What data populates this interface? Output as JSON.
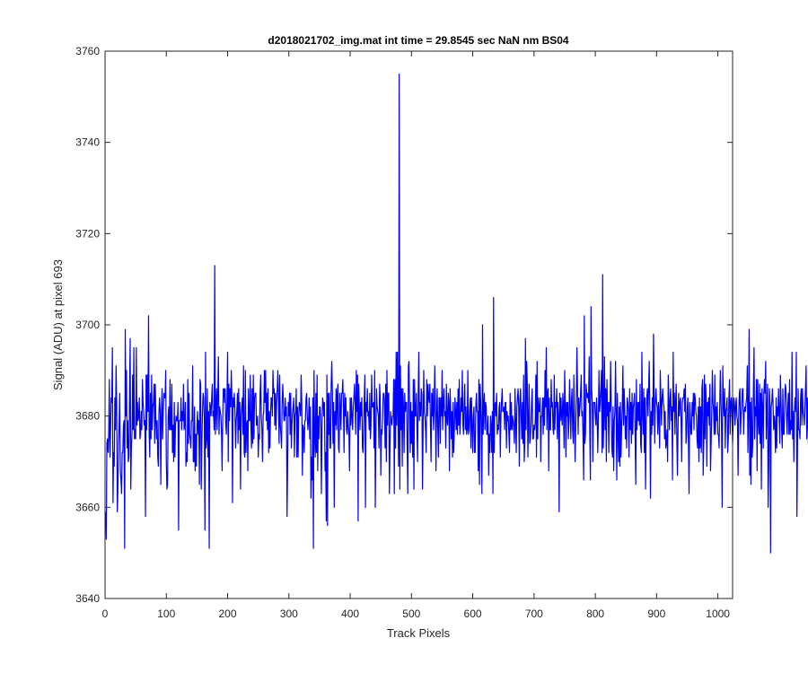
{
  "chart_data": {
    "type": "line",
    "title": "d2018021702_img.mat int time = 29.8545 sec  NaN nm BS04",
    "xlabel": "Track Pixels",
    "ylabel": "Signal (ADU) at pixel 693",
    "xlim": [
      0,
      1024
    ],
    "ylim": [
      3640,
      3760
    ],
    "xticks": [
      0,
      100,
      200,
      300,
      400,
      500,
      600,
      700,
      800,
      900,
      1000
    ],
    "yticks": [
      3640,
      3660,
      3680,
      3700,
      3720,
      3740,
      3760
    ],
    "grid": false,
    "line_color": "#0000ff",
    "series": [
      {
        "name": "",
        "x_start": 1,
        "x_step": 1,
        "values": [
          3659,
          3653,
          3674,
          3675,
          3672,
          3676,
          3688,
          3671,
          3676,
          3684,
          3683,
          3695,
          3661,
          3672,
          3669,
          3684,
          3677,
          3691,
          3683,
          3659,
          3664,
          3674,
          3678,
          3685,
          3668,
          3666,
          3663,
          3672,
          3672,
          3678,
          3679,
          3651,
          3699,
          3680,
          3690,
          3673,
          3679,
          3670,
          3671,
          3685,
          3697,
          3664,
          3673,
          3676,
          3689,
          3677,
          3695,
          3675,
          3677,
          3675,
          3695,
          3678,
          3683,
          3679,
          3680,
          3684,
          3675,
          3676,
          3681,
          3677,
          3688,
          3683,
          3681,
          3678,
          3679,
          3658,
          3689,
          3677,
          3689,
          3681,
          3702,
          3676,
          3671,
          3685,
          3675,
          3689,
          3677,
          3682,
          3683,
          3687,
          3674,
          3687,
          3679,
          3675,
          3679,
          3671,
          3669,
          3681,
          3684,
          3681,
          3665,
          3680,
          3686,
          3675,
          3681,
          3685,
          3684,
          3684,
          3690,
          3670,
          3664,
          3665,
          3680,
          3682,
          3677,
          3688,
          3677,
          3677,
          3687,
          3672,
          3678,
          3670,
          3683,
          3671,
          3678,
          3680,
          3679,
          3679,
          3683,
          3655,
          3679,
          3679,
          3679,
          3684,
          3677,
          3681,
          3679,
          3687,
          3677,
          3678,
          3683,
          3669,
          3672,
          3670,
          3688,
          3674,
          3685,
          3676,
          3675,
          3673,
          3679,
          3679,
          3691,
          3670,
          3670,
          3682,
          3668,
          3676,
          3669,
          3678,
          3681,
          3676,
          3679,
          3665,
          3688,
          3687,
          3664,
          3674,
          3681,
          3685,
          3684,
          3679,
          3655,
          3694,
          3673,
          3675,
          3686,
          3671,
          3681,
          3651,
          3683,
          3682,
          3680,
          3684,
          3687,
          3680,
          3681,
          3677,
          3713,
          3676,
          3681,
          3686,
          3677,
          3685,
          3693,
          3676,
          3682,
          3681,
          3680,
          3677,
          3668,
          3679,
          3686,
          3686,
          3683,
          3686,
          3678,
          3676,
          3684,
          3694,
          3670,
          3687,
          3679,
          3686,
          3682,
          3690,
          3684,
          3661,
          3684,
          3682,
          3685,
          3681,
          3673,
          3679,
          3681,
          3685,
          3674,
          3686,
          3677,
          3683,
          3664,
          3680,
          3682,
          3684,
          3676,
          3691,
          3672,
          3671,
          3690,
          3672,
          3678,
          3679,
          3668,
          3686,
          3679,
          3679,
          3689,
          3678,
          3673,
          3686,
          3674,
          3689,
          3675,
          3684,
          3685,
          3685,
          3678,
          3678,
          3680,
          3671,
          3676,
          3675,
          3685,
          3689,
          3680,
          3677,
          3670,
          3680,
          3681,
          3690,
          3683,
          3690,
          3679,
          3685,
          3677,
          3686,
          3672,
          3681,
          3673,
          3680,
          3684,
          3684,
          3680,
          3690,
          3685,
          3686,
          3678,
          3685,
          3677,
          3683,
          3686,
          3690,
          3684,
          3674,
          3689,
          3678,
          3676,
          3673,
          3683,
          3687,
          3683,
          3679,
          3679,
          3684,
          3680,
          3682,
          3658,
          3670,
          3683,
          3680,
          3685,
          3676,
          3685,
          3673,
          3678,
          3681,
          3682,
          3684,
          3671,
          3680,
          3681,
          3686,
          3671,
          3682,
          3671,
          3680,
          3683,
          3682,
          3680,
          3689,
          3683,
          3667,
          3678,
          3677,
          3672,
          3679,
          3679,
          3684,
          3685,
          3680,
          3677,
          3679,
          3684,
          3675,
          3682,
          3662,
          3671,
          3666,
          3684,
          3651,
          3690,
          3676,
          3671,
          3685,
          3672,
          3689,
          3668,
          3680,
          3675,
          3682,
          3682,
          3679,
          3663,
          3677,
          3684,
          3683,
          3680,
          3683,
          3668,
          3672,
          3657,
          3689,
          3656,
          3685,
          3676,
          3685,
          3673,
          3673,
          3687,
          3692,
          3685,
          3674,
          3683,
          3660,
          3681,
          3678,
          3686,
          3677,
          3685,
          3687,
          3673,
          3672,
          3685,
          3682,
          3677,
          3685,
          3685,
          3688,
          3682,
          3672,
          3685,
          3680,
          3684,
          3677,
          3676,
          3681,
          3678,
          3676,
          3668,
          3684,
          3678,
          3684,
          3680,
          3677,
          3682,
          3684,
          3687,
          3683,
          3676,
          3690,
          3681,
          3689,
          3657,
          3687,
          3682,
          3677,
          3683,
          3680,
          3684,
          3673,
          3672,
          3678,
          3684,
          3689,
          3660,
          3683,
          3681,
          3686,
          3680,
          3681,
          3677,
          3685,
          3675,
          3678,
          3689,
          3682,
          3682,
          3683,
          3673,
          3690,
          3660,
          3676,
          3686,
          3682,
          3681,
          3680,
          3673,
          3687,
          3684,
          3667,
          3677,
          3676,
          3680,
          3685,
          3685,
          3683,
          3673,
          3687,
          3670,
          3690,
          3678,
          3685,
          3685,
          3663,
          3674,
          3681,
          3679,
          3678,
          3680,
          3680,
          3688,
          3663,
          3688,
          3673,
          3694,
          3678,
          3694,
          3681,
          3669,
          3755,
          3664,
          3691,
          3677,
          3686,
          3669,
          3686,
          3682,
          3672,
          3685,
          3681,
          3683,
          3683,
          3673,
          3663,
          3691,
          3692,
          3681,
          3672,
          3683,
          3674,
          3681,
          3671,
          3688,
          3664,
          3688,
          3680,
          3680,
          3685,
          3677,
          3670,
          3685,
          3694,
          3679,
          3683,
          3680,
          3686,
          3685,
          3664,
          3677,
          3690,
          3681,
          3680,
          3677,
          3672,
          3688,
          3680,
          3687,
          3684,
          3683,
          3687,
          3678,
          3670,
          3685,
          3680,
          3686,
          3677,
          3681,
          3691,
          3683,
          3668,
          3681,
          3686,
          3677,
          3671,
          3684,
          3684,
          3674,
          3684,
          3680,
          3690,
          3677,
          3683,
          3686,
          3680,
          3681,
          3673,
          3687,
          3679,
          3678,
          3685,
          3683,
          3668,
          3686,
          3682,
          3675,
          3681,
          3671,
          3683,
          3672,
          3677,
          3684,
          3681,
          3677,
          3683,
          3676,
          3686,
          3678,
          3688,
          3676,
          3679,
          3684,
          3681,
          3690,
          3678,
          3676,
          3683,
          3687,
          3677,
          3682,
          3676,
          3677,
          3690,
          3676,
          3677,
          3681,
          3684,
          3673,
          3684,
          3678,
          3672,
          3680,
          3682,
          3672,
          3672,
          3682,
          3685,
          3681,
          3681,
          3668,
          3688,
          3665,
          3687,
          3683,
          3676,
          3663,
          3700,
          3676,
          3682,
          3685,
          3677,
          3683,
          3682,
          3676,
          3676,
          3680,
          3667,
          3676,
          3672,
          3680,
          3678,
          3672,
          3681,
          3663,
          3706,
          3672,
          3682,
          3683,
          3680,
          3685,
          3676,
          3678,
          3677,
          3682,
          3683,
          3671,
          3680,
          3683,
          3686,
          3681,
          3681,
          3682,
          3677,
          3683,
          3683,
          3673,
          3681,
          3679,
          3680,
          3676,
          3672,
          3685,
          3677,
          3683,
          3677,
          3680,
          3679,
          3677,
          3674,
          3686,
          3679,
          3672,
          3682,
          3684,
          3686,
          3682,
          3669,
          3684,
          3686,
          3680,
          3675,
          3683,
          3674,
          3689,
          3670,
          3674,
          3697,
          3677,
          3692,
          3687,
          3671,
          3679,
          3687,
          3674,
          3675,
          3678,
          3683,
          3686,
          3675,
          3675,
          3678,
          3677,
          3679,
          3689,
          3671,
          3692,
          3675,
          3684,
          3681,
          3681,
          3684,
          3670,
          3680,
          3680,
          3684,
          3676,
          3684,
          3678,
          3690,
          3682,
          3695,
          3677,
          3685,
          3686,
          3668,
          3684,
          3677,
          3677,
          3688,
          3682,
          3683,
          3677,
          3676,
          3689,
          3677,
          3683,
          3682,
          3686,
          3675,
          3683,
          3680,
          3659,
          3685,
          3679,
          3684,
          3680,
          3678,
          3685,
          3682,
          3673,
          3690,
          3683,
          3671,
          3683,
          3680,
          3683,
          3675,
          3679,
          3688,
          3682,
          3675,
          3683,
          3686,
          3677,
          3674,
          3689,
          3680,
          3670,
          3677,
          3684,
          3695,
          3686,
          3676,
          3684,
          3680,
          3682,
          3685,
          3689,
          3680,
          3681,
          3675,
          3666,
          3702,
          3674,
          3676,
          3687,
          3685,
          3684,
          3685,
          3683,
          3693,
          3676,
          3666,
          3704,
          3686,
          3683,
          3670,
          3683,
          3683,
          3683,
          3680,
          3678,
          3684,
          3680,
          3672,
          3679,
          3690,
          3681,
          3683,
          3686,
          3690,
          3672,
          3711,
          3673,
          3680,
          3693,
          3677,
          3686,
          3670,
          3688,
          3680,
          3683,
          3672,
          3683,
          3681,
          3692,
          3682,
          3673,
          3671,
          3682,
          3668,
          3679,
          3681,
          3692,
          3681,
          3666,
          3685,
          3677,
          3670,
          3682,
          3669,
          3683,
          3671,
          3678,
          3682,
          3691,
          3678,
          3686,
          3682,
          3675,
          3680,
          3673,
          3684,
          3683,
          3681,
          3671,
          3686,
          3677,
          3683,
          3674,
          3685,
          3676,
          3682,
          3683,
          3685,
          3675,
          3665,
          3688,
          3677,
          3683,
          3679,
          3683,
          3678,
          3687,
          3674,
          3672,
          3694,
          3681,
          3676,
          3686,
          3672,
          3684,
          3664,
          3678,
          3684,
          3686,
          3680,
          3686,
          3692,
          3681,
          3662,
          3681,
          3676,
          3684,
          3678,
          3698,
          3684,
          3674,
          3683,
          3686,
          3683,
          3682,
          3676,
          3683,
          3680,
          3673,
          3690,
          3684,
          3678,
          3684,
          3686,
          3683,
          3682,
          3675,
          3681,
          3673,
          3674,
          3677,
          3670,
          3689,
          3683,
          3677,
          3684,
          3686,
          3679,
          3682,
          3666,
          3694,
          3681,
          3685,
          3676,
          3683,
          3687,
          3675,
          3667,
          3678,
          3685,
          3680,
          3683,
          3684,
          3679,
          3670,
          3683,
          3684,
          3684,
          3686,
          3681,
          3687,
          3674,
          3676,
          3682,
          3684,
          3674,
          3663,
          3683,
          3680,
          3676,
          3676,
          3683,
          3680,
          3685,
          3677,
          3685,
          3684,
          3681,
          3680,
          3675,
          3673,
          3682,
          3670,
          3684,
          3673,
          3682,
          3672,
          3686,
          3688,
          3667,
          3674,
          3689,
          3675,
          3687,
          3683,
          3669,
          3683,
          3680,
          3684,
          3678,
          3687,
          3668,
          3674,
          3681,
          3690,
          3683,
          3681,
          3676,
          3689,
          3676,
          3682,
          3679,
          3683,
          3676,
          3676,
          3673,
          3682,
          3690,
          3684,
          3677,
          3660,
          3691,
          3683,
          3680,
          3686,
          3673,
          3681,
          3682,
          3684,
          3672,
          3675,
          3684,
          3688,
          3676,
          3683,
          3684,
          3680,
          3674,
          3679,
          3684,
          3683,
          3678,
          3682,
          3684,
          3680,
          3679,
          3667,
          3680,
          3685,
          3686,
          3676,
          3680,
          3682,
          3686,
          3686,
          3676,
          3681,
          3682,
          3681,
          3683,
          3684,
          3691,
          3672,
          3681,
          3699,
          3667,
          3683,
          3665,
          3684,
          3671,
          3674,
          3686,
          3695,
          3675,
          3682,
          3680,
          3688,
          3668,
          3688,
          3679,
          3676,
          3687,
          3674,
          3685,
          3664,
          3686,
          3682,
          3673,
          3685,
          3688,
          3685,
          3692,
          3675,
          3681,
          3687,
          3660,
          3669,
          3686,
          3683,
          3650,
          3682,
          3683,
          3686,
          3683,
          3677,
          3680,
          3678,
          3672,
          3684,
          3673,
          3682,
          3680,
          3686,
          3680,
          3674,
          3689,
          3684,
          3677,
          3673,
          3686,
          3676,
          3676,
          3683,
          3687,
          3686,
          3680,
          3676,
          3682,
          3685,
          3676,
          3688,
          3676,
          3679,
          3677,
          3694,
          3675,
          3681,
          3670,
          3681,
          3684,
          3681,
          3694,
          3658,
          3674,
          3686,
          3677,
          3677,
          3675,
          3684,
          3686,
          3678,
          3686,
          3681,
          3680,
          3678,
          3682,
          3686,
          3691,
          3675,
          3684,
          3678,
          3673,
          3694,
          3670,
          3686,
          3678,
          3689
        ]
      }
    ]
  }
}
